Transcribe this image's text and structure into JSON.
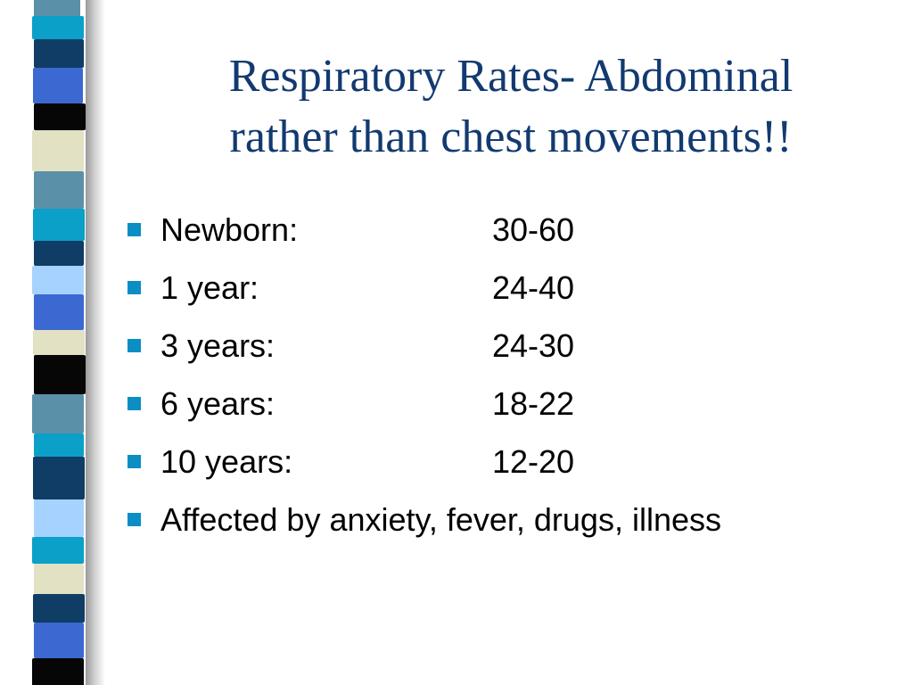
{
  "slide": {
    "title_line1": "Respiratory Rates- Abdominal",
    "title_line2": "rather than chest movements!!",
    "bullets": [
      {
        "label": "Newborn:",
        "value": "30-60"
      },
      {
        "label": "1 year:",
        "value": "24-40"
      },
      {
        "label": "3 years:",
        "value": "24-30"
      },
      {
        "label": "6 years:",
        "value": "18-22"
      },
      {
        "label": "10 years:",
        "value": "12-20"
      },
      {
        "label": "Affected by anxiety, fever, drugs, illness",
        "value": ""
      }
    ]
  },
  "colors": {
    "title": "#123a70",
    "bullet_marker": "#0a8ec4",
    "body_text": "#000000",
    "stripe_palette": [
      "#0f3d66",
      "#3c68d2",
      "#0aa0c8",
      "#a6d2ff",
      "#5a90a8",
      "#e2e1c3",
      "#060606"
    ]
  }
}
